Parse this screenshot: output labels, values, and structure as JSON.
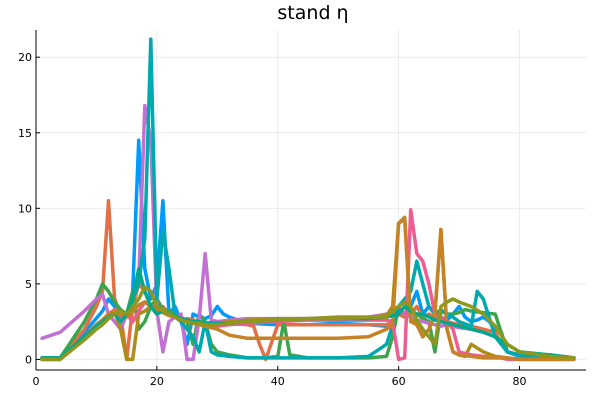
{
  "chart_data": {
    "type": "line",
    "title": "stand η",
    "xlabel": "",
    "ylabel": "",
    "xlim": [
      0,
      91
    ],
    "ylim": [
      -0.7,
      21.8
    ],
    "xticks": [
      0,
      20,
      40,
      60,
      80
    ],
    "yticks": [
      0,
      5,
      10,
      15,
      20
    ],
    "grid": true,
    "legend": "none",
    "series": [
      {
        "color": "#009AFA",
        "x": [
          1,
          4,
          8,
          11,
          12,
          13,
          14,
          15,
          16,
          17,
          18,
          19,
          20,
          21,
          22,
          23,
          24,
          25,
          26,
          27,
          28,
          29,
          30,
          31,
          32,
          35,
          40,
          45,
          50,
          55,
          58,
          59,
          60,
          61,
          62,
          63,
          64,
          65,
          66,
          67,
          68,
          69,
          70,
          71,
          72,
          73,
          74,
          75,
          76,
          77,
          78,
          80,
          85,
          89
        ],
        "y": [
          0.1,
          0.1,
          1.8,
          3.2,
          4.0,
          3.5,
          2.0,
          3.0,
          4.5,
          14.5,
          6.0,
          4.0,
          5.0,
          10.5,
          3.0,
          3.5,
          2.5,
          1.0,
          3.0,
          2.8,
          2.7,
          2.9,
          3.5,
          3.0,
          2.8,
          2.4,
          2.3,
          2.3,
          2.4,
          2.3,
          2.2,
          2.5,
          3.0,
          2.8,
          3.5,
          4.5,
          3.0,
          3.5,
          3.0,
          2.8,
          2.6,
          3.0,
          3.5,
          2.8,
          2.5,
          2.6,
          2.8,
          2.5,
          2.0,
          1.8,
          0.5,
          0.2,
          0.2,
          0.1
        ]
      },
      {
        "color": "#E26F46",
        "x": [
          1,
          4,
          8,
          10,
          11,
          12,
          13,
          14,
          15,
          16,
          17,
          18,
          19,
          20,
          21,
          22,
          23,
          24,
          25,
          26,
          27,
          28,
          30,
          32,
          35,
          36,
          37,
          38,
          40,
          45,
          50,
          55,
          58,
          59,
          60,
          61,
          62,
          63,
          64,
          65,
          66,
          67,
          68,
          69,
          70,
          72,
          74,
          76,
          77,
          78,
          80,
          85,
          89
        ],
        "y": [
          0.0,
          0.1,
          2.0,
          3.5,
          4.5,
          10.5,
          4.0,
          3.0,
          0.0,
          3.5,
          5.0,
          4.5,
          3.5,
          3.0,
          3.5,
          3.0,
          2.8,
          2.6,
          2.7,
          2.6,
          2.5,
          2.4,
          2.5,
          2.4,
          2.3,
          2.2,
          1.0,
          0.0,
          2.3,
          2.3,
          2.3,
          2.3,
          2.3,
          2.5,
          3.0,
          2.8,
          3.0,
          3.5,
          2.8,
          3.0,
          2.8,
          2.6,
          2.5,
          2.4,
          2.3,
          2.2,
          2.0,
          1.8,
          1.0,
          0.5,
          0.3,
          0.3,
          0.1
        ]
      },
      {
        "color": "#3DA44D",
        "x": [
          1,
          4,
          8,
          10,
          11,
          12,
          13,
          14,
          15,
          16,
          17,
          18,
          19,
          20,
          21,
          22,
          23,
          24,
          25,
          26,
          27,
          28,
          29,
          30,
          32,
          35,
          38,
          40,
          41,
          42,
          45,
          50,
          55,
          58,
          59,
          60,
          61,
          62,
          63,
          64,
          65,
          66,
          67,
          68,
          69,
          70,
          71,
          72,
          74,
          76,
          78,
          80,
          85,
          89
        ],
        "y": [
          0.1,
          0.1,
          2.5,
          4.0,
          5.0,
          4.5,
          3.8,
          3.3,
          3.0,
          4.5,
          2.0,
          2.5,
          3.5,
          4.0,
          3.3,
          3.2,
          3.0,
          2.8,
          2.5,
          1.0,
          3.0,
          2.5,
          1.0,
          0.5,
          0.3,
          0.1,
          0.1,
          0.2,
          2.5,
          0.3,
          0.1,
          0.1,
          0.1,
          0.2,
          1.5,
          3.5,
          3.0,
          3.2,
          3.0,
          2.7,
          2.5,
          0.5,
          3.2,
          3.0,
          3.0,
          3.1,
          3.3,
          3.2,
          3.1,
          3.0,
          0.5,
          0.3,
          0.2,
          0.1
        ]
      },
      {
        "color": "#C271D2",
        "x": [
          1,
          4,
          8,
          10,
          11,
          12,
          13,
          14,
          15,
          16,
          17,
          18,
          19,
          20,
          21,
          22,
          23,
          24,
          25,
          26,
          27,
          28,
          29,
          30,
          32,
          35,
          40,
          45,
          50,
          55,
          58,
          60,
          61,
          62,
          63,
          64,
          65,
          66,
          67,
          68,
          69,
          70,
          72,
          74,
          76,
          77,
          78,
          80,
          85,
          89
        ],
        "y": [
          1.4,
          1.8,
          3.2,
          4.0,
          4.3,
          3.0,
          2.5,
          2.0,
          3.0,
          4.0,
          5.0,
          16.8,
          14.5,
          3.2,
          0.5,
          2.5,
          2.8,
          3.0,
          0.0,
          0.0,
          2.7,
          7.0,
          2.6,
          2.5,
          2.6,
          2.7,
          2.7,
          2.7,
          2.8,
          2.8,
          3.0,
          3.5,
          3.0,
          2.8,
          2.6,
          2.5,
          2.4,
          2.3,
          2.2,
          2.3,
          2.2,
          2.1,
          2.0,
          1.8,
          1.5,
          1.0,
          0.5,
          0.3,
          0.3,
          0.1
        ]
      },
      {
        "color": "#AC8D18",
        "x": [
          1,
          4,
          8,
          10,
          11,
          12,
          13,
          14,
          15,
          16,
          17,
          18,
          19,
          20,
          21,
          22,
          23,
          24,
          25,
          26,
          27,
          28,
          30,
          32,
          35,
          40,
          45,
          50,
          55,
          58,
          59,
          60,
          61,
          62,
          63,
          64,
          65,
          66,
          67,
          68,
          69,
          70,
          71,
          72,
          74,
          76,
          78,
          80,
          85,
          89
        ],
        "y": [
          0.0,
          0.0,
          1.5,
          2.3,
          2.6,
          3.0,
          3.2,
          2.0,
          0.0,
          0.0,
          3.0,
          3.2,
          3.5,
          3.4,
          3.3,
          3.0,
          2.8,
          2.5,
          2.5,
          2.4,
          2.3,
          2.3,
          2.4,
          2.5,
          2.6,
          2.7,
          2.7,
          2.8,
          2.8,
          2.9,
          3.5,
          9.0,
          9.4,
          2.5,
          2.5,
          1.5,
          2.0,
          3.0,
          8.6,
          2.0,
          0.5,
          0.3,
          0.2,
          1.0,
          0.5,
          0.2,
          0.1,
          0.0,
          0.0,
          0.0
        ]
      },
      {
        "color": "#00A9AD",
        "x": [
          1,
          4,
          8,
          10,
          11,
          12,
          13,
          14,
          15,
          16,
          17,
          18,
          19,
          20,
          21,
          22,
          23,
          24,
          25,
          26,
          27,
          28,
          29,
          30,
          32,
          35,
          40,
          45,
          50,
          55,
          58,
          60,
          61,
          62,
          63,
          64,
          65,
          66,
          67,
          68,
          69,
          70,
          72,
          73,
          74,
          76,
          78,
          80,
          85,
          89
        ],
        "y": [
          0.0,
          0.1,
          1.5,
          2.3,
          2.6,
          3.0,
          3.2,
          3.0,
          2.8,
          4.0,
          5.0,
          8.0,
          21.2,
          4.0,
          8.5,
          6.0,
          3.0,
          2.5,
          2.0,
          1.5,
          0.5,
          2.5,
          0.5,
          0.3,
          0.2,
          0.1,
          0.1,
          0.1,
          0.1,
          0.2,
          1.0,
          3.5,
          4.0,
          4.5,
          6.5,
          5.0,
          3.5,
          3.0,
          3.3,
          3.0,
          2.8,
          2.5,
          2.2,
          4.5,
          4.0,
          1.5,
          0.5,
          0.3,
          0.2,
          0.1
        ]
      },
      {
        "color": "#ED5D92",
        "x": [
          1,
          4,
          8,
          10,
          11,
          12,
          13,
          14,
          15,
          16,
          17,
          18,
          19,
          20,
          21,
          22,
          23,
          24,
          25,
          26,
          27,
          28,
          30,
          32,
          35,
          40,
          45,
          50,
          55,
          58,
          59,
          60,
          61,
          62,
          63,
          64,
          65,
          66,
          67,
          68,
          69,
          70,
          72,
          74,
          76,
          77,
          78,
          80,
          85,
          89
        ],
        "y": [
          0.0,
          0.0,
          1.5,
          2.3,
          2.6,
          3.0,
          3.3,
          2.8,
          3.0,
          2.5,
          3.2,
          3.8,
          3.5,
          3.5,
          3.2,
          3.0,
          2.8,
          2.6,
          2.5,
          2.4,
          2.3,
          2.2,
          2.2,
          2.3,
          2.4,
          2.5,
          2.6,
          2.6,
          2.6,
          2.6,
          2.5,
          0.0,
          0.1,
          9.9,
          7.0,
          6.5,
          5.0,
          3.0,
          2.8,
          2.5,
          2.0,
          0.5,
          0.3,
          0.2,
          0.1,
          0.1,
          0.0,
          0.0,
          0.0,
          0.0
        ]
      },
      {
        "color": "#C68225",
        "x": [
          1,
          4,
          8,
          10,
          11,
          12,
          13,
          14,
          15,
          16,
          17,
          18,
          19,
          20,
          21,
          22,
          23,
          24,
          25,
          26,
          27,
          28,
          30,
          32,
          35,
          40,
          45,
          50,
          55,
          58,
          59,
          60,
          61,
          62,
          63,
          64,
          65,
          66,
          67,
          68,
          69,
          70,
          72,
          74,
          76,
          78,
          80,
          85,
          89
        ],
        "y": [
          0.0,
          0.0,
          1.5,
          2.3,
          2.6,
          3.0,
          3.2,
          3.0,
          2.8,
          3.2,
          3.6,
          3.8,
          3.5,
          3.3,
          3.1,
          2.9,
          2.8,
          2.6,
          2.5,
          2.4,
          2.3,
          2.2,
          2.0,
          1.6,
          1.4,
          1.4,
          1.4,
          1.4,
          1.5,
          2.0,
          2.3,
          9.0,
          9.3,
          2.5,
          2.3,
          1.5,
          2.0,
          3.0,
          8.6,
          2.0,
          0.5,
          0.3,
          0.2,
          0.1,
          0.1,
          0.1,
          0.0,
          0.0,
          0.0
        ]
      },
      {
        "color": "#00A98D",
        "x": [
          1,
          4,
          8,
          10,
          11,
          12,
          13,
          14,
          15,
          16,
          17,
          18,
          19,
          20,
          21,
          22,
          23,
          24,
          25,
          26,
          27,
          28,
          30,
          32,
          35,
          40,
          45,
          50,
          55,
          58,
          60,
          61,
          62,
          63,
          64,
          65,
          66,
          67,
          68,
          69,
          70,
          72,
          74,
          76,
          78,
          80,
          85,
          89
        ],
        "y": [
          0.1,
          0.1,
          1.5,
          2.2,
          2.5,
          2.8,
          3.0,
          2.5,
          3.0,
          4.0,
          6.0,
          4.5,
          3.5,
          3.0,
          3.2,
          3.0,
          2.9,
          2.7,
          2.6,
          2.5,
          2.5,
          2.4,
          2.4,
          2.4,
          2.5,
          2.6,
          2.7,
          2.7,
          2.7,
          2.8,
          3.0,
          3.5,
          3.2,
          3.0,
          3.0,
          2.8,
          2.6,
          2.5,
          2.4,
          2.3,
          2.2,
          2.0,
          1.8,
          1.5,
          1.0,
          0.5,
          0.3,
          0.1
        ]
      },
      {
        "color": "#8E971E",
        "x": [
          1,
          4,
          8,
          10,
          11,
          12,
          13,
          14,
          15,
          16,
          17,
          18,
          19,
          20,
          21,
          22,
          23,
          24,
          25,
          26,
          27,
          28,
          30,
          32,
          35,
          40,
          45,
          50,
          55,
          58,
          59,
          60,
          61,
          62,
          63,
          64,
          65,
          66,
          67,
          68,
          69,
          70,
          72,
          74,
          76,
          78,
          80,
          85,
          89
        ],
        "y": [
          0.0,
          0.0,
          1.3,
          2.0,
          2.3,
          2.7,
          3.0,
          3.2,
          3.0,
          3.5,
          4.0,
          4.8,
          4.5,
          3.5,
          3.2,
          3.0,
          2.8,
          2.6,
          2.5,
          2.4,
          2.4,
          2.3,
          2.3,
          2.4,
          2.5,
          2.6,
          2.7,
          2.7,
          2.8,
          2.8,
          3.2,
          3.5,
          3.8,
          3.5,
          2.6,
          2.0,
          1.5,
          1.0,
          3.5,
          3.8,
          4.0,
          3.8,
          3.5,
          3.0,
          2.2,
          1.0,
          0.5,
          0.2,
          0.1
        ]
      }
    ]
  }
}
